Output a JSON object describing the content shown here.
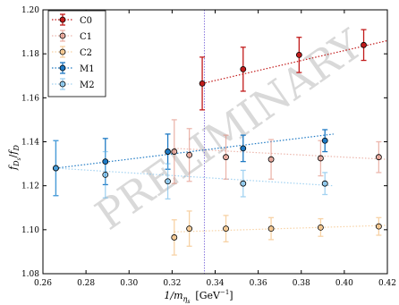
{
  "chart_data": {
    "type": "scatter",
    "xlabel": "1/m_{η_s} [GeV⁻¹]",
    "xlabel_main": "1/m",
    "xlabel_sub": "η",
    "xlabel_subsub": "s",
    "xlabel_units": "[GeV",
    "xlabel_exp": "−1",
    "xlabel_close": "]",
    "ylabel": "f_{D_s}/f_D",
    "ylabel_f1": "f",
    "ylabel_sub1": "D",
    "ylabel_subsub1": "s",
    "ylabel_slash": "/",
    "ylabel_f2": "f",
    "ylabel_sub2": "D",
    "xlim": [
      0.26,
      0.42
    ],
    "ylim": [
      1.08,
      1.2
    ],
    "xticks": [
      0.26,
      0.28,
      0.3,
      0.32,
      0.34,
      0.36,
      0.38,
      0.4,
      0.42
    ],
    "xtick_labels": [
      "0.26",
      "0.28",
      "0.30",
      "0.32",
      "0.34",
      "0.36",
      "0.38",
      "0.40",
      "0.42"
    ],
    "yticks": [
      1.08,
      1.1,
      1.12,
      1.14,
      1.16,
      1.18,
      1.2
    ],
    "ytick_labels": [
      "1.08",
      "1.10",
      "1.12",
      "1.14",
      "1.16",
      "1.18",
      "1.20"
    ],
    "vertical_line_x": 0.335,
    "watermark": "PRELIMINARY",
    "legend_position": "top-left",
    "grid": false,
    "series": [
      {
        "name": "C0",
        "color": "#c21b1b",
        "alpha": 1.0,
        "points": [
          {
            "x": 0.334,
            "y": 1.1665,
            "err": 0.012
          },
          {
            "x": 0.353,
            "y": 1.173,
            "err": 0.01
          },
          {
            "x": 0.379,
            "y": 1.1795,
            "err": 0.008
          },
          {
            "x": 0.409,
            "y": 1.184,
            "err": 0.007
          }
        ],
        "fit": [
          [
            0.334,
            1.1665
          ],
          [
            0.42,
            1.186
          ]
        ]
      },
      {
        "name": "C1",
        "color": "#e08878",
        "alpha": 0.6,
        "points": [
          {
            "x": 0.321,
            "y": 1.1355,
            "err": 0.0145
          },
          {
            "x": 0.328,
            "y": 1.134,
            "err": 0.012
          },
          {
            "x": 0.345,
            "y": 1.133,
            "err": 0.01
          },
          {
            "x": 0.366,
            "y": 1.132,
            "err": 0.009
          },
          {
            "x": 0.389,
            "y": 1.1325,
            "err": 0.008
          },
          {
            "x": 0.416,
            "y": 1.133,
            "err": 0.007
          }
        ],
        "fit": [
          [
            0.321,
            1.137
          ],
          [
            0.42,
            1.132
          ]
        ]
      },
      {
        "name": "C2",
        "color": "#f2b56b",
        "alpha": 0.6,
        "points": [
          {
            "x": 0.321,
            "y": 1.0965,
            "err": 0.008
          },
          {
            "x": 0.328,
            "y": 1.1005,
            "err": 0.008
          },
          {
            "x": 0.345,
            "y": 1.1005,
            "err": 0.006
          },
          {
            "x": 0.366,
            "y": 1.1005,
            "err": 0.005
          },
          {
            "x": 0.389,
            "y": 1.101,
            "err": 0.004
          },
          {
            "x": 0.416,
            "y": 1.1015,
            "err": 0.004
          }
        ],
        "fit": [
          [
            0.321,
            1.099
          ],
          [
            0.42,
            1.102
          ]
        ]
      },
      {
        "name": "M1",
        "color": "#1f7ac4",
        "alpha": 1.0,
        "points": [
          {
            "x": 0.266,
            "y": 1.128,
            "err": 0.0125
          },
          {
            "x": 0.289,
            "y": 1.131,
            "err": 0.0105
          },
          {
            "x": 0.318,
            "y": 1.1355,
            "err": 0.008
          },
          {
            "x": 0.353,
            "y": 1.137,
            "err": 0.006
          },
          {
            "x": 0.391,
            "y": 1.1405,
            "err": 0.005
          }
        ],
        "fit": [
          [
            0.266,
            1.128
          ],
          [
            0.395,
            1.1435
          ]
        ]
      },
      {
        "name": "M2",
        "color": "#66b5e8",
        "alpha": 0.6,
        "points": [
          {
            "x": 0.266,
            "y": 1.128,
            "err": 0.0125
          },
          {
            "x": 0.289,
            "y": 1.125,
            "err": 0.0105
          },
          {
            "x": 0.318,
            "y": 1.122,
            "err": 0.008
          },
          {
            "x": 0.353,
            "y": 1.121,
            "err": 0.006
          },
          {
            "x": 0.391,
            "y": 1.121,
            "err": 0.005
          }
        ],
        "fit": [
          [
            0.266,
            1.128
          ],
          [
            0.395,
            1.12
          ]
        ]
      }
    ]
  }
}
